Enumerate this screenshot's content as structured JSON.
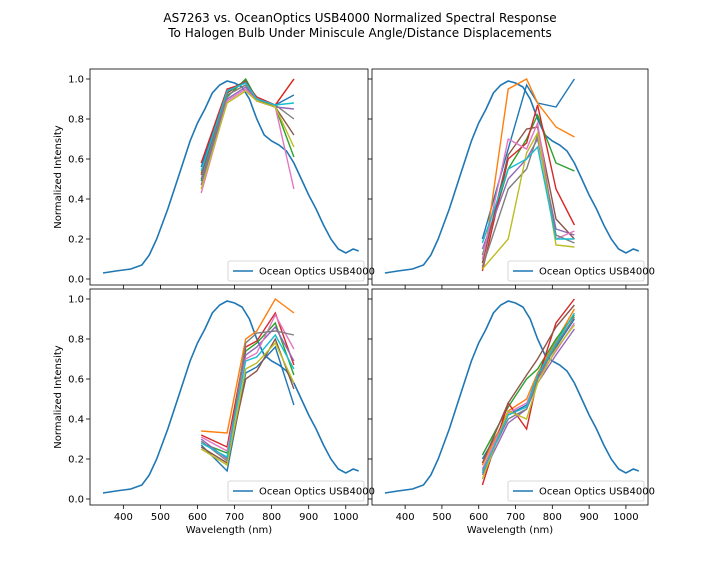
{
  "figure": {
    "title_line1": "AS7263 vs. OceanOptics USB4000 Normalized Spectral Response",
    "title_line2": "To Halogen Bulb Under Miniscule Angle/Distance Displacements"
  },
  "colors": [
    "#1f77b4",
    "#ff7f0e",
    "#2ca02c",
    "#d62728",
    "#9467bd",
    "#8c564b",
    "#e377c2",
    "#7f7f7f",
    "#bcbd22",
    "#17becf"
  ],
  "chart_data": [
    {
      "type": "line",
      "panel": "top-left",
      "xlabel": "",
      "ylabel": "Normalized Intensity",
      "xlim": [
        310,
        1060
      ],
      "ylim": [
        -0.03,
        1.05
      ],
      "xticks": [
        400,
        500,
        600,
        700,
        800,
        900,
        1000
      ],
      "yticks": [
        0.0,
        0.2,
        0.4,
        0.6,
        0.8,
        1.0
      ],
      "show_xtick_labels": false,
      "show_ytick_labels": true,
      "legend": {
        "position": "lower-right",
        "label": "Ocean Optics USB4000"
      },
      "reference_curve_x": [
        345,
        380,
        420,
        450,
        470,
        490,
        520,
        550,
        580,
        600,
        620,
        640,
        660,
        680,
        700,
        720,
        740,
        760,
        780,
        800,
        820,
        840,
        860,
        880,
        900,
        920,
        940,
        960,
        980,
        1000,
        1020,
        1035
      ],
      "reference_curve_y": [
        0.03,
        0.04,
        0.05,
        0.07,
        0.12,
        0.2,
        0.35,
        0.52,
        0.69,
        0.78,
        0.85,
        0.93,
        0.97,
        0.99,
        0.98,
        0.96,
        0.9,
        0.8,
        0.72,
        0.69,
        0.67,
        0.64,
        0.58,
        0.5,
        0.42,
        0.35,
        0.27,
        0.2,
        0.15,
        0.13,
        0.15,
        0.14
      ],
      "sensor_x": [
        610,
        680,
        730,
        760,
        810,
        860
      ],
      "sensor_series": [
        {
          "values": [
            0.56,
            0.94,
            0.99,
            0.9,
            0.87,
            0.92
          ]
        },
        {
          "values": [
            0.53,
            0.92,
            0.97,
            0.89,
            0.87,
            1.0
          ]
        },
        {
          "values": [
            0.49,
            0.91,
            1.0,
            0.9,
            0.86,
            0.61
          ]
        },
        {
          "values": [
            0.58,
            0.95,
            0.98,
            0.91,
            0.87,
            1.0
          ]
        },
        {
          "values": [
            0.47,
            0.9,
            0.96,
            0.89,
            0.86,
            0.85
          ]
        },
        {
          "values": [
            0.52,
            0.93,
            0.99,
            0.9,
            0.86,
            0.72
          ]
        },
        {
          "values": [
            0.43,
            0.89,
            0.95,
            0.89,
            0.86,
            0.45
          ]
        },
        {
          "values": [
            0.5,
            0.92,
            0.97,
            0.9,
            0.87,
            0.8
          ]
        },
        {
          "values": [
            0.45,
            0.88,
            0.94,
            0.89,
            0.86,
            0.66
          ]
        },
        {
          "values": [
            0.54,
            0.94,
            0.98,
            0.9,
            0.87,
            0.88
          ]
        }
      ]
    },
    {
      "type": "line",
      "panel": "top-right",
      "xlabel": "",
      "ylabel": "",
      "xlim": [
        310,
        1060
      ],
      "ylim": [
        -0.03,
        1.05
      ],
      "xticks": [
        400,
        500,
        600,
        700,
        800,
        900,
        1000
      ],
      "yticks": [
        0.0,
        0.2,
        0.4,
        0.6,
        0.8,
        1.0
      ],
      "show_xtick_labels": false,
      "show_ytick_labels": false,
      "legend": {
        "position": "lower-right",
        "label": "Ocean Optics USB4000"
      },
      "reference_curve_x": [
        345,
        380,
        420,
        450,
        470,
        490,
        520,
        550,
        580,
        600,
        620,
        640,
        660,
        680,
        700,
        720,
        740,
        760,
        780,
        800,
        820,
        840,
        860,
        880,
        900,
        920,
        940,
        960,
        980,
        1000,
        1020,
        1035
      ],
      "reference_curve_y": [
        0.03,
        0.04,
        0.05,
        0.07,
        0.12,
        0.2,
        0.35,
        0.52,
        0.69,
        0.78,
        0.85,
        0.93,
        0.97,
        0.99,
        0.98,
        0.96,
        0.9,
        0.8,
        0.72,
        0.69,
        0.67,
        0.64,
        0.58,
        0.5,
        0.42,
        0.35,
        0.27,
        0.2,
        0.15,
        0.13,
        0.15,
        0.14
      ],
      "sensor_x": [
        610,
        680,
        730,
        760,
        810,
        860
      ],
      "sensor_series": [
        {
          "values": [
            0.2,
            0.65,
            0.97,
            0.88,
            0.86,
            1.0
          ]
        },
        {
          "values": [
            0.05,
            0.95,
            1.0,
            0.88,
            0.76,
            0.71
          ]
        },
        {
          "values": [
            0.12,
            0.55,
            0.7,
            0.82,
            0.58,
            0.54
          ]
        },
        {
          "values": [
            0.04,
            0.6,
            0.68,
            0.87,
            0.45,
            0.27
          ]
        },
        {
          "values": [
            0.15,
            0.5,
            0.6,
            0.7,
            0.25,
            0.22
          ]
        },
        {
          "values": [
            0.08,
            0.62,
            0.75,
            0.76,
            0.3,
            0.2
          ]
        },
        {
          "values": [
            0.1,
            0.7,
            0.65,
            0.78,
            0.2,
            0.24
          ]
        },
        {
          "values": [
            0.06,
            0.45,
            0.55,
            0.72,
            0.22,
            0.18
          ]
        },
        {
          "values": [
            0.05,
            0.2,
            0.63,
            0.73,
            0.17,
            0.16
          ]
        },
        {
          "values": [
            0.18,
            0.55,
            0.6,
            0.66,
            0.2,
            0.2
          ]
        }
      ]
    },
    {
      "type": "line",
      "panel": "bottom-left",
      "xlabel": "Wavelength (nm)",
      "ylabel": "Normalized Intensity",
      "xlim": [
        310,
        1060
      ],
      "ylim": [
        -0.03,
        1.05
      ],
      "xticks": [
        400,
        500,
        600,
        700,
        800,
        900,
        1000
      ],
      "yticks": [
        0.0,
        0.2,
        0.4,
        0.6,
        0.8,
        1.0
      ],
      "show_xtick_labels": true,
      "show_ytick_labels": true,
      "legend": {
        "position": "lower-right",
        "label": "Ocean Optics USB4000"
      },
      "reference_curve_x": [
        345,
        380,
        420,
        450,
        470,
        490,
        520,
        550,
        580,
        600,
        620,
        640,
        660,
        680,
        700,
        720,
        740,
        760,
        780,
        800,
        820,
        840,
        860,
        880,
        900,
        920,
        940,
        960,
        980,
        1000,
        1020,
        1035
      ],
      "reference_curve_y": [
        0.03,
        0.04,
        0.05,
        0.07,
        0.12,
        0.2,
        0.35,
        0.52,
        0.69,
        0.78,
        0.85,
        0.93,
        0.97,
        0.99,
        0.98,
        0.96,
        0.9,
        0.8,
        0.72,
        0.69,
        0.67,
        0.64,
        0.58,
        0.5,
        0.42,
        0.35,
        0.27,
        0.2,
        0.15,
        0.13,
        0.15,
        0.14
      ],
      "sensor_x": [
        610,
        680,
        730,
        760,
        810,
        860
      ],
      "sensor_series": [
        {
          "values": [
            0.27,
            0.14,
            0.63,
            0.66,
            0.76,
            0.47
          ]
        },
        {
          "values": [
            0.34,
            0.33,
            0.8,
            0.84,
            1.0,
            0.93
          ]
        },
        {
          "values": [
            0.28,
            0.23,
            0.74,
            0.78,
            0.88,
            0.62
          ]
        },
        {
          "values": [
            0.32,
            0.26,
            0.76,
            0.79,
            0.93,
            0.67
          ]
        },
        {
          "values": [
            0.3,
            0.2,
            0.72,
            0.76,
            0.86,
            0.69
          ]
        },
        {
          "values": [
            0.26,
            0.18,
            0.6,
            0.64,
            0.8,
            0.55
          ]
        },
        {
          "values": [
            0.31,
            0.24,
            0.7,
            0.73,
            0.92,
            0.75
          ]
        },
        {
          "values": [
            0.29,
            0.19,
            0.78,
            0.83,
            0.84,
            0.82
          ]
        },
        {
          "values": [
            0.25,
            0.17,
            0.65,
            0.68,
            0.78,
            0.58
          ]
        },
        {
          "values": [
            0.28,
            0.21,
            0.69,
            0.71,
            0.82,
            0.65
          ]
        }
      ]
    },
    {
      "type": "line",
      "panel": "bottom-right",
      "xlabel": "Wavelength (nm)",
      "ylabel": "",
      "xlim": [
        310,
        1060
      ],
      "ylim": [
        -0.03,
        1.05
      ],
      "xticks": [
        400,
        500,
        600,
        700,
        800,
        900,
        1000
      ],
      "yticks": [
        0.0,
        0.2,
        0.4,
        0.6,
        0.8,
        1.0
      ],
      "show_xtick_labels": true,
      "show_ytick_labels": false,
      "legend": {
        "position": "lower-right",
        "label": "Ocean Optics USB4000"
      },
      "reference_curve_x": [
        345,
        380,
        420,
        450,
        470,
        490,
        520,
        550,
        580,
        600,
        620,
        640,
        660,
        680,
        700,
        720,
        740,
        760,
        780,
        800,
        820,
        840,
        860,
        880,
        900,
        920,
        940,
        960,
        980,
        1000,
        1020,
        1035
      ],
      "reference_curve_y": [
        0.03,
        0.04,
        0.05,
        0.07,
        0.12,
        0.2,
        0.35,
        0.52,
        0.69,
        0.78,
        0.85,
        0.93,
        0.97,
        0.99,
        0.98,
        0.96,
        0.9,
        0.8,
        0.72,
        0.69,
        0.67,
        0.64,
        0.58,
        0.5,
        0.42,
        0.35,
        0.27,
        0.2,
        0.15,
        0.13,
        0.15,
        0.14
      ],
      "sensor_x": [
        610,
        680,
        730,
        760,
        810,
        860
      ],
      "sensor_series": [
        {
          "values": [
            0.2,
            0.42,
            0.47,
            0.62,
            0.76,
            0.9
          ]
        },
        {
          "values": [
            0.17,
            0.44,
            0.5,
            0.63,
            0.79,
            0.95
          ]
        },
        {
          "values": [
            0.22,
            0.46,
            0.6,
            0.65,
            0.8,
            0.92
          ]
        },
        {
          "values": [
            0.07,
            0.48,
            0.35,
            0.6,
            0.88,
            1.0
          ]
        },
        {
          "values": [
            0.12,
            0.38,
            0.45,
            0.58,
            0.72,
            0.85
          ]
        },
        {
          "values": [
            0.18,
            0.48,
            0.62,
            0.7,
            0.86,
            0.97
          ]
        },
        {
          "values": [
            0.15,
            0.43,
            0.48,
            0.6,
            0.74,
            0.88
          ]
        },
        {
          "values": [
            0.14,
            0.4,
            0.45,
            0.6,
            0.77,
            0.91
          ]
        },
        {
          "values": [
            0.1,
            0.44,
            0.4,
            0.58,
            0.75,
            0.87
          ]
        },
        {
          "values": [
            0.13,
            0.42,
            0.46,
            0.62,
            0.78,
            0.93
          ]
        }
      ]
    }
  ]
}
